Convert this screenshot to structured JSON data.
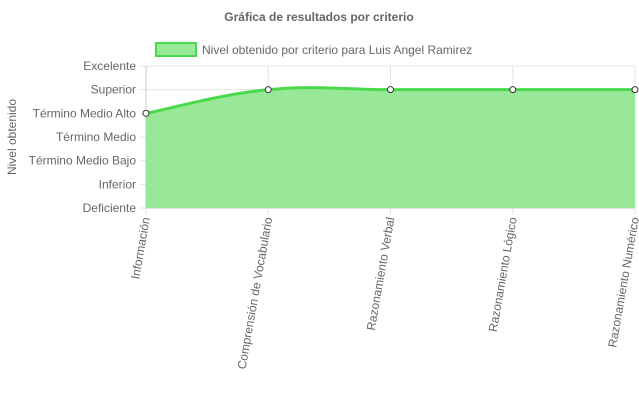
{
  "chart_data": {
    "type": "area",
    "title": "Gráfica de resultados por criterio",
    "ylabel": "Nivel obtenido",
    "xlabel": "",
    "y_levels": [
      "Deficiente",
      "Inferior",
      "Término Medio Bajo",
      "Término Medio",
      "Término Medio Alto",
      "Superior",
      "Excelente"
    ],
    "categories": [
      "Información",
      "Comprensión de Vocabulario",
      "Razonamiento Verbal",
      "Razonamiento Lógico",
      "Razonamiento Numérico"
    ],
    "series": [
      {
        "name": "Nivel obtenido por criterio para Luis Angel Ramirez",
        "values": [
          4,
          5,
          5,
          5,
          5
        ],
        "line_color": "#4cd84c",
        "fill_color": "#98e898"
      }
    ],
    "ylim": [
      0,
      6
    ],
    "grid": true,
    "legend_position": "top"
  }
}
